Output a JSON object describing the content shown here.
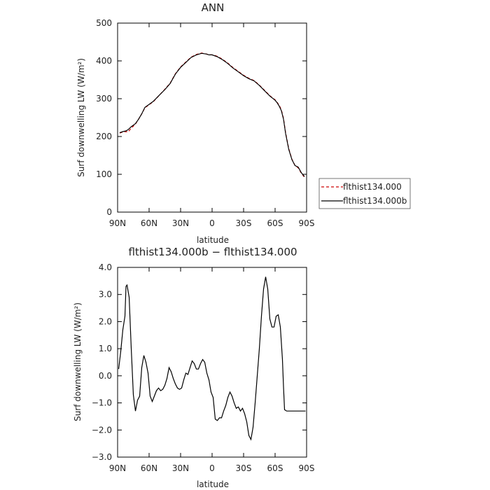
{
  "chart_data": [
    {
      "type": "line",
      "title": "ANN",
      "xlabel": "latitude",
      "ylabel": "Surf downwelling LW (W/m²)",
      "xlim": [
        90,
        -90
      ],
      "ylim": [
        0,
        500
      ],
      "xticks": [
        90,
        60,
        30,
        0,
        -30,
        -60,
        -90
      ],
      "xtick_labels": [
        "90N",
        "60N",
        "30N",
        "0",
        "30S",
        "60S",
        "90S"
      ],
      "yticks": [
        0,
        100,
        200,
        300,
        400,
        500
      ],
      "ytick_labels": [
        "0",
        "100",
        "200",
        "300",
        "400",
        "500"
      ],
      "legend_position": "right",
      "series": [
        {
          "name": "flthist134.000",
          "color": "#cc0000",
          "dash": "dashed",
          "x": [
            88,
            85,
            82,
            80,
            77,
            73,
            70,
            67,
            64,
            60,
            56,
            50,
            45,
            40,
            35,
            30,
            25,
            20,
            15,
            10,
            5,
            3,
            0,
            -3,
            -5,
            -10,
            -15,
            -20,
            -25,
            -30,
            -35,
            -40,
            -45,
            -50,
            -55,
            -60,
            -62,
            -64,
            -66,
            -68,
            -70,
            -73,
            -76,
            -79,
            -82,
            -85,
            -88
          ],
          "y": [
            209,
            212,
            213,
            212,
            222,
            233,
            246,
            260,
            276,
            284,
            292,
            310,
            325,
            341,
            366,
            384,
            397,
            410,
            417,
            421,
            418,
            416,
            416,
            414,
            412,
            404,
            394,
            382,
            372,
            362,
            354,
            348,
            336,
            322,
            308,
            297,
            290,
            282,
            270,
            248,
            210,
            168,
            140,
            123,
            117,
            103,
            92
          ]
        },
        {
          "name": "flthist134.000b",
          "color": "#000000",
          "dash": "solid",
          "x": [
            88,
            85,
            82,
            80,
            77,
            73,
            70,
            67,
            64,
            60,
            56,
            50,
            45,
            40,
            35,
            30,
            25,
            20,
            15,
            10,
            5,
            3,
            0,
            -3,
            -5,
            -10,
            -15,
            -20,
            -25,
            -30,
            -35,
            -40,
            -45,
            -50,
            -55,
            -60,
            -62,
            -64,
            -66,
            -68,
            -70,
            -73,
            -76,
            -79,
            -82,
            -85,
            -88
          ],
          "y": [
            210,
            213,
            215,
            218,
            226,
            234,
            246,
            260,
            277,
            285,
            293,
            310,
            324,
            340,
            365,
            383,
            396,
            409,
            416,
            420,
            418,
            416,
            416,
            413,
            411,
            403,
            393,
            381,
            371,
            361,
            353,
            347,
            335,
            321,
            307,
            296,
            289,
            280,
            268,
            246,
            208,
            166,
            139,
            123,
            119,
            104,
            94
          ]
        }
      ]
    },
    {
      "type": "line",
      "title": "flthist134.000b − flthist134.000",
      "xlabel": "latitude",
      "ylabel": "Surf downwelling LW (W/m²)",
      "xlim": [
        90,
        -90
      ],
      "ylim": [
        -3.0,
        4.0
      ],
      "xticks": [
        90,
        60,
        30,
        0,
        -30,
        -60,
        -90
      ],
      "xtick_labels": [
        "90N",
        "60N",
        "30N",
        "0",
        "30S",
        "60S",
        "90S"
      ],
      "yticks": [
        -3,
        -2,
        -1,
        0,
        1,
        2,
        3,
        4
      ],
      "ytick_labels": [
        "−3.0",
        "−2.0",
        "−1.0",
        "0.0",
        "1.0",
        "2.0",
        "3.0",
        "4.0"
      ],
      "series": [
        {
          "color": "#000000",
          "dash": "solid",
          "x": [
            89,
            87,
            85,
            83,
            82,
            81,
            79,
            77,
            75,
            73,
            71,
            69,
            67,
            65,
            63,
            61,
            59,
            57,
            55,
            53,
            51,
            49,
            47,
            45,
            43,
            41,
            39,
            37,
            35,
            33,
            31,
            29,
            27,
            25,
            23,
            21,
            19,
            17,
            15,
            13,
            11,
            9,
            7,
            5,
            3,
            1,
            -1,
            -3,
            -5,
            -7,
            -9,
            -11,
            -13,
            -15,
            -17,
            -19,
            -21,
            -23,
            -25,
            -27,
            -29,
            -31,
            -33,
            -35,
            -37,
            -39,
            -41,
            -43,
            -45,
            -47,
            -49,
            -51,
            -53,
            -55,
            -57,
            -59,
            -61,
            -63,
            -65,
            -67,
            -68,
            -69,
            -71,
            -73,
            -75,
            -77,
            -79,
            -81,
            -83,
            -85,
            -87,
            -89
          ],
          "y": [
            0.25,
            0.9,
            1.7,
            2.2,
            3.3,
            3.35,
            2.9,
            1.0,
            -0.7,
            -1.3,
            -0.9,
            -0.75,
            0.3,
            0.75,
            0.5,
            0.1,
            -0.75,
            -0.95,
            -0.75,
            -0.55,
            -0.45,
            -0.55,
            -0.5,
            -0.35,
            -0.1,
            0.3,
            0.15,
            -0.1,
            -0.3,
            -0.45,
            -0.5,
            -0.45,
            -0.15,
            0.1,
            0.05,
            0.3,
            0.55,
            0.45,
            0.25,
            0.25,
            0.45,
            0.6,
            0.5,
            0.1,
            -0.15,
            -0.6,
            -0.8,
            -1.6,
            -1.65,
            -1.55,
            -1.55,
            -1.3,
            -1.1,
            -0.8,
            -0.6,
            -0.75,
            -1.0,
            -1.2,
            -1.15,
            -1.3,
            -1.2,
            -1.4,
            -1.7,
            -2.2,
            -2.35,
            -1.9,
            -1.0,
            0.0,
            1.0,
            2.2,
            3.2,
            3.65,
            3.2,
            2.1,
            1.8,
            1.8,
            2.2,
            2.25,
            1.8,
            0.6,
            -0.4,
            -1.25,
            -1.3,
            -1.3,
            -1.3,
            -1.3,
            -1.3,
            -1.3,
            -1.3,
            -1.3,
            -1.3,
            -1.3
          ]
        }
      ]
    }
  ]
}
